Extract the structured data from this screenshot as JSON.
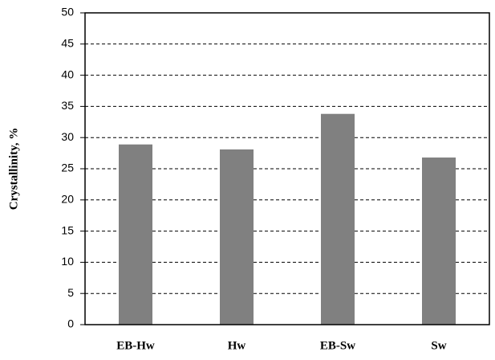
{
  "chart_data": {
    "type": "bar",
    "y_label": "Crystallinity, %",
    "categories": [
      "EB-Hw",
      "Hw",
      "EB-Sw",
      "Sw"
    ],
    "values": [
      28.9,
      28.1,
      33.8,
      26.8
    ],
    "color": "#808080",
    "ylim": [
      0,
      50
    ],
    "yticks": [
      0,
      5,
      10,
      15,
      20,
      25,
      30,
      35,
      40,
      45,
      50
    ],
    "grid": true
  }
}
